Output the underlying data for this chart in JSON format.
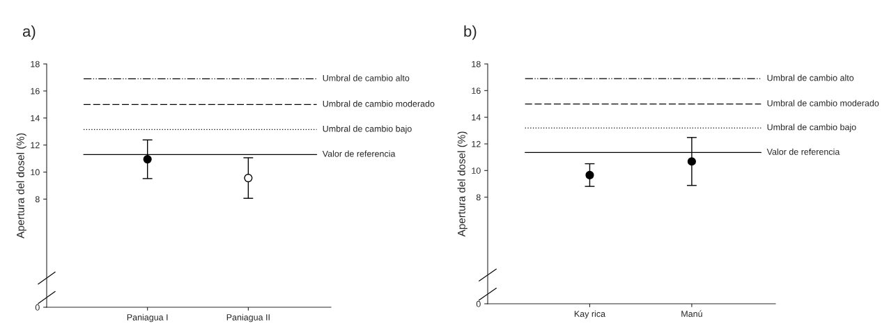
{
  "chart_data": [
    {
      "type": "scatter",
      "title": "a)",
      "ylabel": "Apertura del dosel (%)",
      "categories": [
        "Paniagua I",
        "Paniagua II"
      ],
      "values": [
        10.95,
        9.56
      ],
      "errors": [
        1.43,
        1.5
      ],
      "colors": [
        "#000000",
        "#ffffff"
      ],
      "marker": "circle",
      "ylim": [
        0,
        18
      ],
      "yticks": [
        0,
        8,
        10,
        12,
        14,
        16,
        18
      ],
      "ref_lines": [
        {
          "axis": "y",
          "value": 16.9,
          "label": "Umbral de cambio alto",
          "color": "#000000",
          "line_style": "dashdotdot"
        },
        {
          "axis": "y",
          "value": 15.0,
          "label": "Umbral de cambio moderado",
          "color": "#000000",
          "line_style": "dashed"
        },
        {
          "axis": "y",
          "value": 13.15,
          "label": "Umbral de cambio bajo",
          "color": "#000000",
          "line_style": "dotted"
        },
        {
          "axis": "y",
          "value": 11.3,
          "label": "Valor de referencia",
          "color": "#000000",
          "line_style": "solid"
        }
      ],
      "grid": false
    },
    {
      "type": "scatter",
      "title": "b)",
      "ylabel": "Apertura del dosel (%)",
      "categories": [
        "Kay rica",
        "Manú"
      ],
      "values": [
        9.66,
        10.68
      ],
      "errors": [
        0.85,
        1.8
      ],
      "colors": [
        "#000000",
        "#000000"
      ],
      "marker": "circle",
      "ylim": [
        0,
        18
      ],
      "yticks": [
        0,
        8,
        10,
        12,
        14,
        16,
        18
      ],
      "ref_lines": [
        {
          "axis": "y",
          "value": 16.9,
          "label": "Umbral de cambio alto",
          "color": "#000000",
          "line_style": "dashdotdot"
        },
        {
          "axis": "y",
          "value": 15.0,
          "label": "Umbral de cambio moderado",
          "color": "#000000",
          "line_style": "dashed"
        },
        {
          "axis": "y",
          "value": 13.2,
          "label": "Umbral de cambio bajo",
          "color": "#000000",
          "line_style": "dotted"
        },
        {
          "axis": "y",
          "value": 11.35,
          "label": "Valor de referencia",
          "color": "#000000",
          "line_style": "solid"
        }
      ],
      "grid": false
    }
  ]
}
